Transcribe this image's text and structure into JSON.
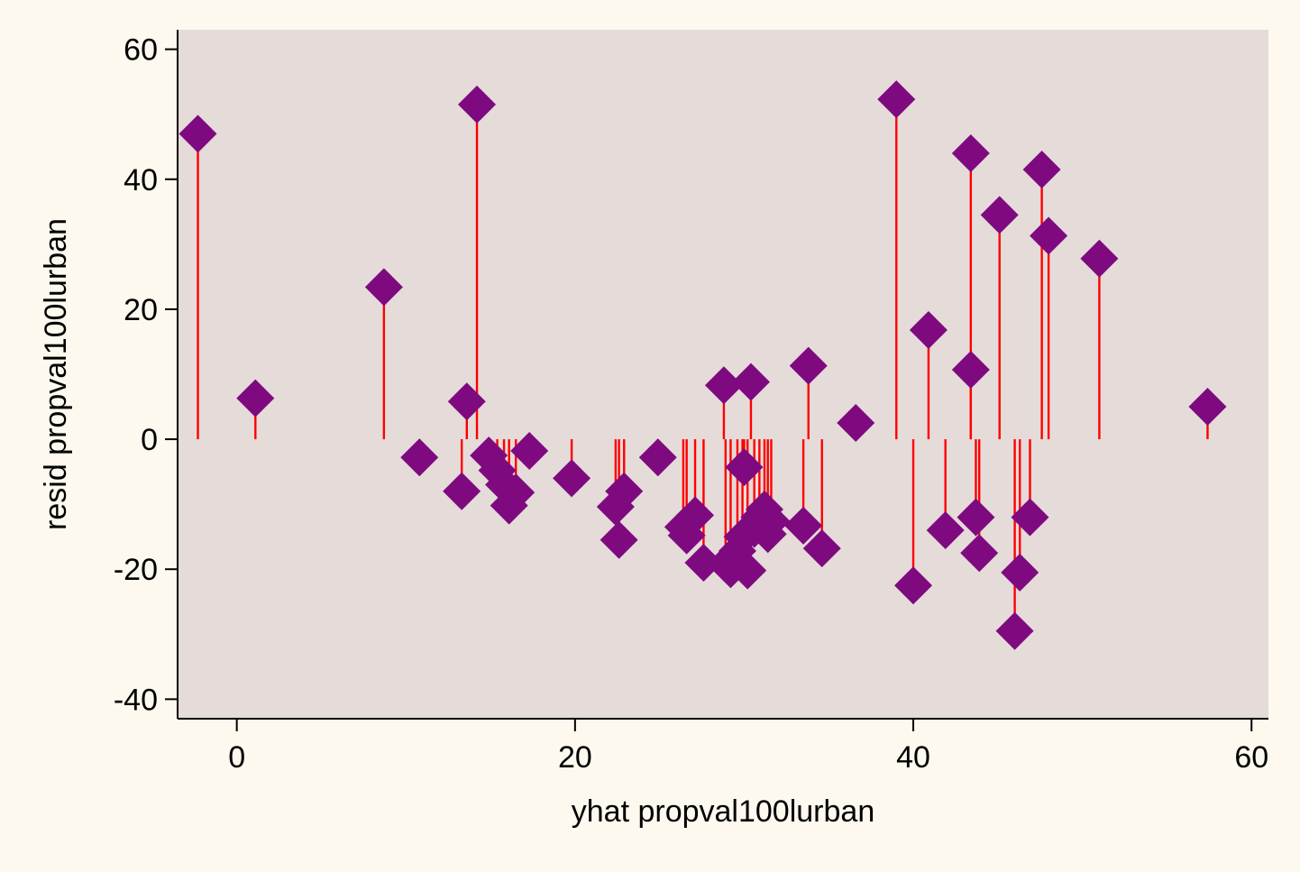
{
  "chart_data": {
    "type": "scatter",
    "title": "",
    "xlabel": "yhat propval100lurban",
    "ylabel": "resid propval100lurban",
    "xlim": [
      -3.5,
      61
    ],
    "ylim": [
      -43,
      63
    ],
    "x_ticks": [
      "0",
      "20",
      "40",
      "60"
    ],
    "y_ticks": [
      "60",
      "40",
      "20",
      "0",
      "-20",
      "-40"
    ],
    "grid": false,
    "legend": "none",
    "marker": "diamond",
    "spikes_to_zero": true,
    "colors": {
      "page_background": "#fdf9ef",
      "plot_background": "#e5dbd9",
      "marker": "#7f0a80",
      "spike": "#ff0000",
      "axis": "#000000"
    },
    "points": [
      {
        "x": -2.3,
        "y": 47.0
      },
      {
        "x": 1.1,
        "y": 6.3
      },
      {
        "x": 8.7,
        "y": 23.4
      },
      {
        "x": 10.8,
        "y": -2.8
      },
      {
        "x": 13.3,
        "y": -8.0
      },
      {
        "x": 13.6,
        "y": 5.8
      },
      {
        "x": 14.2,
        "y": 51.5
      },
      {
        "x": 14.9,
        "y": -2.5
      },
      {
        "x": 15.4,
        "y": -4.8
      },
      {
        "x": 15.8,
        "y": -7.0
      },
      {
        "x": 16.1,
        "y": -10.2
      },
      {
        "x": 16.5,
        "y": -8.2
      },
      {
        "x": 17.3,
        "y": -1.8
      },
      {
        "x": 19.8,
        "y": -6.0
      },
      {
        "x": 22.4,
        "y": -10.4
      },
      {
        "x": 22.6,
        "y": -15.5
      },
      {
        "x": 22.9,
        "y": -8.0
      },
      {
        "x": 24.9,
        "y": -2.8
      },
      {
        "x": 26.4,
        "y": -13.5
      },
      {
        "x": 26.6,
        "y": -14.8
      },
      {
        "x": 27.1,
        "y": -11.7
      },
      {
        "x": 27.6,
        "y": -19.0
      },
      {
        "x": 28.8,
        "y": 8.3
      },
      {
        "x": 28.9,
        "y": -19.2
      },
      {
        "x": 29.2,
        "y": -20.0
      },
      {
        "x": 29.6,
        "y": -17.2
      },
      {
        "x": 29.9,
        "y": -15.0
      },
      {
        "x": 30.0,
        "y": -4.3
      },
      {
        "x": 30.2,
        "y": -20.2
      },
      {
        "x": 30.4,
        "y": 8.8
      },
      {
        "x": 30.6,
        "y": -13.8
      },
      {
        "x": 30.9,
        "y": -12.0
      },
      {
        "x": 31.2,
        "y": -10.8
      },
      {
        "x": 31.4,
        "y": -14.6
      },
      {
        "x": 31.6,
        "y": -12.6
      },
      {
        "x": 33.5,
        "y": -13.3
      },
      {
        "x": 33.8,
        "y": 11.3
      },
      {
        "x": 34.6,
        "y": -16.8
      },
      {
        "x": 36.6,
        "y": 2.5
      },
      {
        "x": 39.0,
        "y": 52.3
      },
      {
        "x": 40.0,
        "y": -22.5
      },
      {
        "x": 40.9,
        "y": 16.8
      },
      {
        "x": 41.9,
        "y": -14.0
      },
      {
        "x": 43.4,
        "y": 44.0
      },
      {
        "x": 43.4,
        "y": 10.7
      },
      {
        "x": 43.7,
        "y": -12.0
      },
      {
        "x": 43.9,
        "y": -17.5
      },
      {
        "x": 45.1,
        "y": 34.5
      },
      {
        "x": 46.0,
        "y": -29.5
      },
      {
        "x": 46.3,
        "y": -20.5
      },
      {
        "x": 46.9,
        "y": -12.0
      },
      {
        "x": 47.6,
        "y": 41.5
      },
      {
        "x": 48.0,
        "y": 31.3
      },
      {
        "x": 51.0,
        "y": 27.8
      },
      {
        "x": 57.4,
        "y": 5.0
      }
    ]
  }
}
